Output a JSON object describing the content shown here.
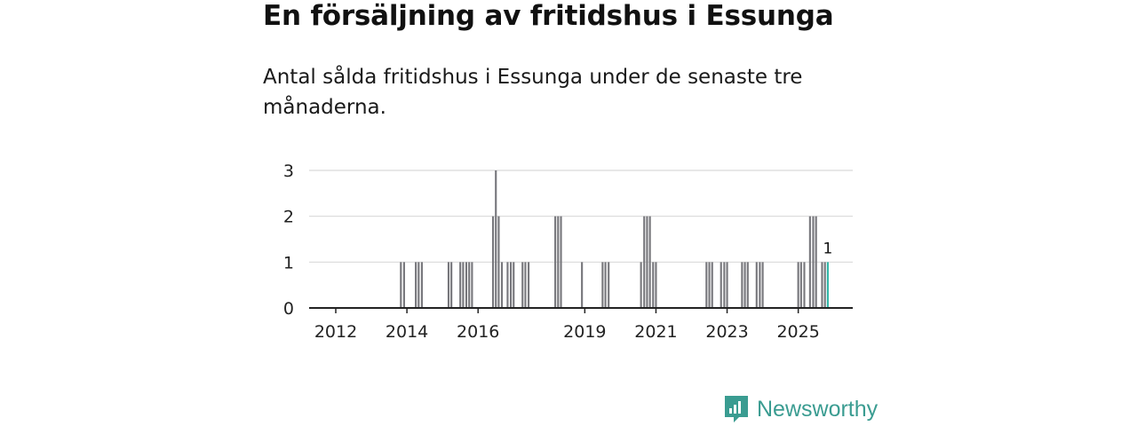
{
  "title": "En försäljning av fritidshus i Essunga",
  "subtitle": "Antal sålda fritidshus i Essunga under de senaste tre månaderna.",
  "brand": {
    "name": "Newsworthy"
  },
  "colors": {
    "bar": "#77777c",
    "highlight": "#2fb5a6",
    "grid": "#d9d9d9",
    "axis": "#222222",
    "brand": "#3a9c91"
  },
  "chart_data": {
    "type": "bar",
    "xlabel": "",
    "ylabel": "",
    "ylim": [
      0,
      3
    ],
    "xlim": [
      2011.25,
      2026.6
    ],
    "yticks": [
      "0",
      "1",
      "2",
      "3"
    ],
    "xticks": [
      "2012",
      "2014",
      "2016",
      "2019",
      "2021",
      "2023",
      "2025"
    ],
    "xtick_values": [
      2012,
      2014,
      2016,
      2019,
      2021,
      2023,
      2025
    ],
    "grid": true,
    "bar_width_years": 0.083,
    "highlight": {
      "x": 2025.83,
      "value": 1,
      "label": "1"
    },
    "bars": [
      {
        "x": 2013.83,
        "value": 1
      },
      {
        "x": 2013.92,
        "value": 1
      },
      {
        "x": 2014.25,
        "value": 1
      },
      {
        "x": 2014.33,
        "value": 1
      },
      {
        "x": 2014.42,
        "value": 1
      },
      {
        "x": 2015.17,
        "value": 1
      },
      {
        "x": 2015.25,
        "value": 1
      },
      {
        "x": 2015.5,
        "value": 1
      },
      {
        "x": 2015.58,
        "value": 1
      },
      {
        "x": 2015.67,
        "value": 1
      },
      {
        "x": 2015.75,
        "value": 1
      },
      {
        "x": 2015.83,
        "value": 1
      },
      {
        "x": 2016.42,
        "value": 2
      },
      {
        "x": 2016.5,
        "value": 3
      },
      {
        "x": 2016.58,
        "value": 2
      },
      {
        "x": 2016.67,
        "value": 1
      },
      {
        "x": 2016.83,
        "value": 1
      },
      {
        "x": 2016.92,
        "value": 1
      },
      {
        "x": 2017.0,
        "value": 1
      },
      {
        "x": 2017.25,
        "value": 1
      },
      {
        "x": 2017.33,
        "value": 1
      },
      {
        "x": 2017.42,
        "value": 1
      },
      {
        "x": 2018.17,
        "value": 2
      },
      {
        "x": 2018.25,
        "value": 2
      },
      {
        "x": 2018.33,
        "value": 2
      },
      {
        "x": 2018.92,
        "value": 1
      },
      {
        "x": 2019.5,
        "value": 1
      },
      {
        "x": 2019.58,
        "value": 1
      },
      {
        "x": 2019.67,
        "value": 1
      },
      {
        "x": 2020.58,
        "value": 1
      },
      {
        "x": 2020.67,
        "value": 2
      },
      {
        "x": 2020.75,
        "value": 2
      },
      {
        "x": 2020.83,
        "value": 2
      },
      {
        "x": 2020.92,
        "value": 1
      },
      {
        "x": 2021.0,
        "value": 1
      },
      {
        "x": 2022.42,
        "value": 1
      },
      {
        "x": 2022.5,
        "value": 1
      },
      {
        "x": 2022.58,
        "value": 1
      },
      {
        "x": 2022.83,
        "value": 1
      },
      {
        "x": 2022.92,
        "value": 1
      },
      {
        "x": 2023.0,
        "value": 1
      },
      {
        "x": 2023.42,
        "value": 1
      },
      {
        "x": 2023.5,
        "value": 1
      },
      {
        "x": 2023.58,
        "value": 1
      },
      {
        "x": 2023.83,
        "value": 1
      },
      {
        "x": 2023.92,
        "value": 1
      },
      {
        "x": 2024.0,
        "value": 1
      },
      {
        "x": 2025.0,
        "value": 1
      },
      {
        "x": 2025.08,
        "value": 1
      },
      {
        "x": 2025.17,
        "value": 1
      },
      {
        "x": 2025.33,
        "value": 2
      },
      {
        "x": 2025.42,
        "value": 2
      },
      {
        "x": 2025.5,
        "value": 2
      },
      {
        "x": 2025.67,
        "value": 1
      },
      {
        "x": 2025.75,
        "value": 1
      },
      {
        "x": 2025.83,
        "value": 1
      }
    ]
  }
}
